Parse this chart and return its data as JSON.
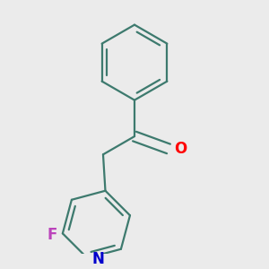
{
  "background_color": "#ebebeb",
  "bond_color": "#3d7a6e",
  "bond_width": 1.6,
  "atom_colors": {
    "O": "#ff0000",
    "N": "#0000cc",
    "F": "#bb44bb"
  },
  "font_size_atoms": 12
}
